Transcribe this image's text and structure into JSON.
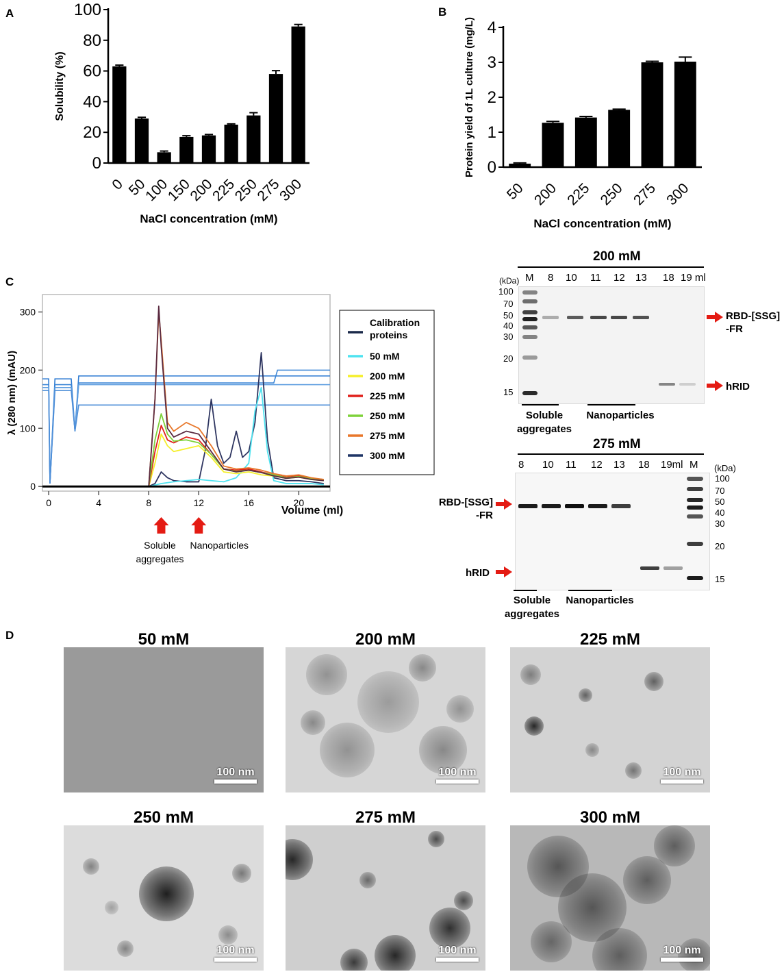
{
  "panels": {
    "a": "A",
    "b": "B",
    "c": "C",
    "d": "D"
  },
  "chart_data": [
    {
      "type": "bar",
      "panel": "A",
      "ylabel": "Solubility (%)",
      "xlabel": "NaCl concentration (mM)",
      "categories": [
        "0",
        "50",
        "100",
        "150",
        "200",
        "225",
        "250",
        "275",
        "300"
      ],
      "values": [
        63,
        29,
        7,
        17,
        18,
        25,
        31,
        58,
        89
      ],
      "errors": [
        0.8,
        0.8,
        0.8,
        0.8,
        0.6,
        0.5,
        1.8,
        2.2,
        1.3
      ],
      "ylim": [
        0,
        100
      ],
      "yticks": [
        "0",
        "20",
        "40",
        "60",
        "80",
        "100"
      ]
    },
    {
      "type": "bar",
      "panel": "B",
      "ylabel": "Protein yield of 1L culture (mg/L)",
      "xlabel": "NaCl concentration (mM)",
      "categories": [
        "50",
        "200",
        "225",
        "250",
        "275",
        "300"
      ],
      "values": [
        0.1,
        1.27,
        1.42,
        1.64,
        3.0,
        3.02
      ],
      "errors": [
        0.02,
        0.04,
        0.03,
        0.02,
        0.03,
        0.13
      ],
      "ylim": [
        0,
        4
      ],
      "yticks": [
        "0",
        "1",
        "2",
        "3",
        "4"
      ]
    },
    {
      "type": "line",
      "panel": "C",
      "ylabel": "λ (280 nm) (mAU)",
      "xlabel": "Volume (ml)",
      "xticks": [
        "0",
        "4",
        "8",
        "12",
        "16",
        "20"
      ],
      "yticks": [
        "0",
        "100",
        "200",
        "300"
      ],
      "xlim": [
        -0.5,
        22.5
      ],
      "ylim": [
        -8,
        330
      ],
      "legend": [
        {
          "name": "Calibration proteins",
          "color": "#1b2a4a"
        },
        {
          "name": "50 mM",
          "color": "#4fe3f0"
        },
        {
          "name": "200 mM",
          "color": "#f5ef2a"
        },
        {
          "name": "225 mM",
          "color": "#e0201b"
        },
        {
          "name": "250 mM",
          "color": "#7ed23a"
        },
        {
          "name": "275 mM",
          "color": "#e8772a"
        },
        {
          "name": "300 mM",
          "color": "#1f3566"
        }
      ],
      "series": [
        {
          "name": "Calibration proteins",
          "color": "#2e3560",
          "x": [
            0,
            8,
            8.5,
            9,
            9.5,
            10,
            11,
            12,
            12.5,
            13,
            13.5,
            14,
            14.5,
            15,
            15.5,
            16,
            16.5,
            17,
            17.5,
            18,
            19,
            20,
            21,
            22
          ],
          "y": [
            0,
            0,
            5,
            25,
            15,
            10,
            8,
            8,
            60,
            150,
            70,
            40,
            50,
            95,
            50,
            60,
            110,
            230,
            80,
            15,
            10,
            10,
            8,
            5
          ]
        },
        {
          "name": "50 mM",
          "color": "#4fe3f0",
          "x": [
            0,
            8,
            9,
            10,
            11,
            12,
            13,
            14,
            15,
            16,
            16.5,
            17,
            17.5,
            18,
            19,
            20,
            21,
            22
          ],
          "y": [
            0,
            0,
            5,
            8,
            10,
            12,
            10,
            8,
            15,
            40,
            130,
            170,
            60,
            10,
            5,
            5,
            5,
            3
          ]
        },
        {
          "name": "200 mM",
          "color": "#f5ef2a",
          "x": [
            0,
            8,
            8.5,
            9,
            9.5,
            10,
            11,
            12,
            13,
            14,
            15,
            16,
            17,
            18,
            19,
            20,
            21,
            22
          ],
          "y": [
            0,
            0,
            40,
            90,
            70,
            60,
            65,
            70,
            50,
            25,
            22,
            25,
            20,
            18,
            14,
            16,
            12,
            10
          ]
        },
        {
          "name": "225 mM",
          "color": "#e0201b",
          "x": [
            0,
            8,
            8.5,
            9,
            9.5,
            10,
            11,
            12,
            13,
            14,
            15,
            16,
            17,
            18,
            19,
            20,
            21,
            22
          ],
          "y": [
            0,
            0,
            60,
            105,
            80,
            75,
            85,
            80,
            55,
            30,
            28,
            30,
            25,
            20,
            16,
            18,
            14,
            12
          ]
        },
        {
          "name": "250 mM",
          "color": "#7ed23a",
          "x": [
            0,
            8,
            8.5,
            9,
            9.5,
            10,
            11,
            12,
            13,
            14,
            15,
            16,
            17,
            18,
            19,
            20,
            21,
            22
          ],
          "y": [
            0,
            0,
            80,
            125,
            90,
            78,
            80,
            75,
            55,
            30,
            26,
            28,
            24,
            20,
            15,
            17,
            13,
            11
          ]
        },
        {
          "name": "275 mM",
          "color": "#e8772a",
          "x": [
            0,
            8,
            8.5,
            8.8,
            9,
            9.5,
            10,
            11,
            12,
            13,
            14,
            15,
            16,
            17,
            18,
            19,
            20,
            21,
            22
          ],
          "y": [
            0,
            0,
            150,
            300,
            250,
            110,
            95,
            110,
            100,
            70,
            35,
            30,
            32,
            28,
            22,
            18,
            20,
            15,
            12
          ]
        },
        {
          "name": "300 mM",
          "color": "#5a2a40",
          "x": [
            0,
            8,
            8.5,
            8.8,
            9,
            9.5,
            10,
            11,
            12,
            13,
            14,
            15,
            16,
            17,
            18,
            19,
            20,
            21,
            22
          ],
          "y": [
            0,
            0,
            150,
            310,
            240,
            100,
            85,
            95,
            90,
            60,
            30,
            25,
            28,
            24,
            18,
            14,
            16,
            12,
            10
          ]
        }
      ],
      "arrows": [
        {
          "x": 9,
          "label": "Soluble\naggregates"
        },
        {
          "x": 12,
          "label": "Nanoparticles"
        }
      ]
    }
  ],
  "gel1": {
    "title": "200 mM",
    "kda_unit": "(kDa)",
    "lanes": [
      "M",
      "8",
      "10",
      "11",
      "12",
      "13",
      "18",
      "19 ml"
    ],
    "markers": [
      "100",
      "70",
      "50",
      "40",
      "30",
      "20",
      "15"
    ],
    "label_top": "RBD-[SSG]\n-FR",
    "label_bottom": "hRID",
    "group1": "Soluble\naggregates",
    "group2": "Nanoparticles"
  },
  "gel2": {
    "title": "275 mM",
    "kda_unit": "(kDa)",
    "lanes": [
      "8",
      "10",
      "11",
      "12",
      "13",
      "18",
      "19ml",
      "M"
    ],
    "markers": [
      "100",
      "70",
      "50",
      "40",
      "30",
      "20",
      "15"
    ],
    "label_top": "RBD-[SSG]\n-FR",
    "label_bottom": "hRID",
    "group1": "Soluble\naggregates",
    "group2": "Nanoparticles"
  },
  "tem": [
    {
      "title": "50 mM",
      "scale": "100 nm"
    },
    {
      "title": "200 mM",
      "scale": "100 nm"
    },
    {
      "title": "225 mM",
      "scale": "100 nm"
    },
    {
      "title": "250 mM",
      "scale": "100 nm"
    },
    {
      "title": "275 mM",
      "scale": "100 nm"
    },
    {
      "title": "300 mM",
      "scale": "100 nm"
    }
  ]
}
